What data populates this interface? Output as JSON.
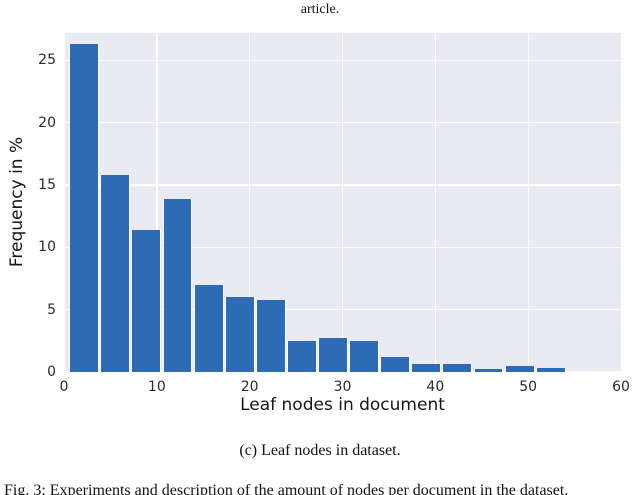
{
  "page": {
    "top_caption": "article.",
    "sub_caption": "(c) Leaf nodes in dataset.",
    "bottom_caption": "Fig. 3: Experiments and description of the amount of nodes per document in the dataset."
  },
  "chart_data": {
    "type": "bar",
    "kind": "histogram",
    "title": "",
    "xlabel": "Leaf nodes in document",
    "ylabel": "Frequency in %",
    "xlim": [
      0,
      60
    ],
    "ylim": [
      0,
      27.2
    ],
    "xticks": [
      0,
      10,
      20,
      30,
      40,
      50,
      60
    ],
    "yticks": [
      0,
      5,
      10,
      15,
      20,
      25
    ],
    "grid": true,
    "legend_position": "none",
    "bin_start": 0.5,
    "bin_width": 3.35,
    "values": [
      26.3,
      15.8,
      11.4,
      13.9,
      7.0,
      6.0,
      5.8,
      2.5,
      2.7,
      2.5,
      1.2,
      0.65,
      0.65,
      0.25,
      0.5,
      0.3
    ],
    "bar_color": "#2d6cb5",
    "bar_edge_color": "#ffffff",
    "plot_bg": "#eaeaf2",
    "grid_color": "#ffffff"
  }
}
